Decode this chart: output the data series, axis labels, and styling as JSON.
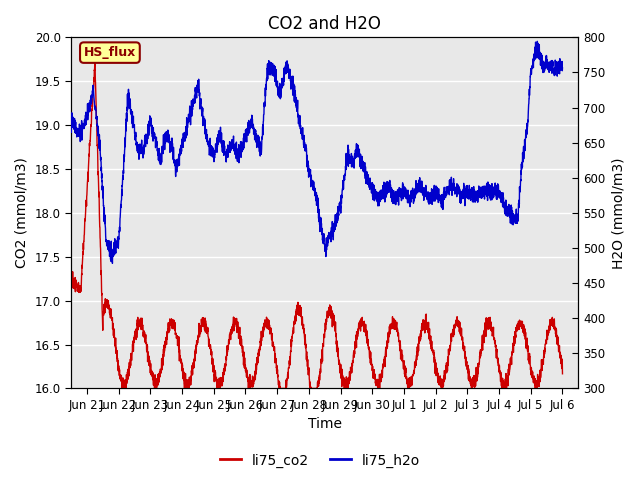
{
  "title": "CO2 and H2O",
  "xlabel": "Time",
  "ylabel_left": "CO2 (mmol/m3)",
  "ylabel_right": "H2O (mmol/m3)",
  "ylim_left": [
    16.0,
    20.0
  ],
  "ylim_right": [
    300,
    800
  ],
  "yticks_left": [
    16.0,
    16.5,
    17.0,
    17.5,
    18.0,
    18.5,
    19.0,
    19.5,
    20.0
  ],
  "yticks_right": [
    300,
    350,
    400,
    450,
    500,
    550,
    600,
    650,
    700,
    750,
    800
  ],
  "co2_color": "#cc0000",
  "h2o_color": "#0000cc",
  "plot_bg_color": "#e8e8e8",
  "fig_bg_color": "#ffffff",
  "grid_color": "#ffffff",
  "box_facecolor": "#ffff99",
  "box_edgecolor": "#8b0000",
  "box_text": "HS_flux",
  "box_text_color": "#8b0000",
  "legend_labels": [
    "li75_co2",
    "li75_h2o"
  ],
  "title_fontsize": 12,
  "label_fontsize": 10,
  "tick_fontsize": 8.5,
  "linewidth": 1.0,
  "tick_labels": [
    "Jun 21",
    "Jun 22",
    "Jun 23",
    "Jun 24",
    "Jun 25",
    "Jun 26",
    "Jun 27",
    "Jun 28",
    "Jun 29",
    "Jun 30",
    "Jul 1",
    "Jul 2",
    "Jul 3",
    "Jul 4",
    "Jul 5",
    "Jul 6"
  ],
  "tick_positions": [
    1,
    2,
    3,
    4,
    5,
    6,
    7,
    8,
    9,
    10,
    11,
    12,
    13,
    14,
    15,
    16
  ],
  "xlim": [
    0.5,
    16.5
  ]
}
